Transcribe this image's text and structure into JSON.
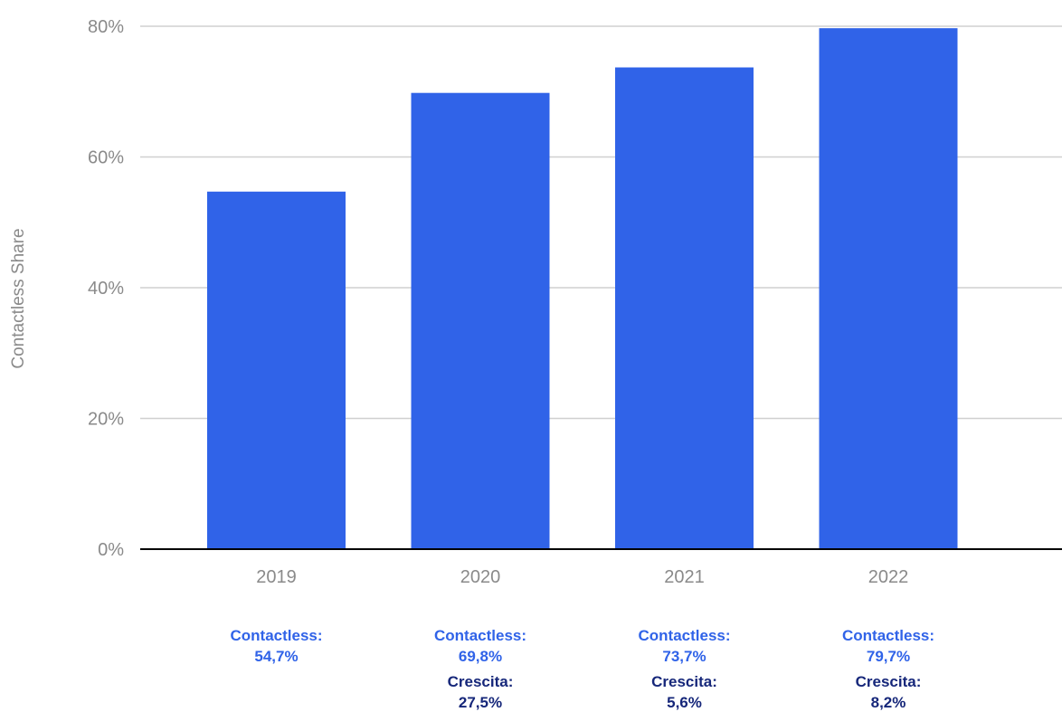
{
  "chart_data": {
    "type": "bar",
    "categories": [
      "2019",
      "2020",
      "2021",
      "2022"
    ],
    "values": [
      54.7,
      69.8,
      73.7,
      79.7
    ],
    "ylabel": "Contactless Share",
    "xlabel": "",
    "ylim": [
      0,
      80
    ],
    "yticks": [
      0,
      20,
      40,
      60,
      80
    ],
    "ytick_labels": [
      "0%",
      "20%",
      "40%",
      "60%",
      "80%"
    ],
    "grid": true,
    "bar_color": "#3063e8",
    "annotations": [
      {
        "category": "2019",
        "line1": "Contactless:",
        "line2": "54,7%"
      },
      {
        "category": "2020",
        "line1": "Contactless:",
        "line2": "69,8%",
        "line3": "Crescita:",
        "line4": "27,5%"
      },
      {
        "category": "2021",
        "line1": "Contactless:",
        "line2": "73,7%",
        "line3": "Crescita:",
        "line4": "5,6%"
      },
      {
        "category": "2022",
        "line1": "Contactless:",
        "line2": "79,7%",
        "line3": "Crescita:",
        "line4": "8,2%"
      }
    ],
    "colors": {
      "bar": "#3063e8",
      "contactless_text": "#3063e8",
      "growth_text": "#16277a",
      "grid": "#d0d0d0",
      "axis": "#000000",
      "labels": "#8a8a8a"
    }
  }
}
